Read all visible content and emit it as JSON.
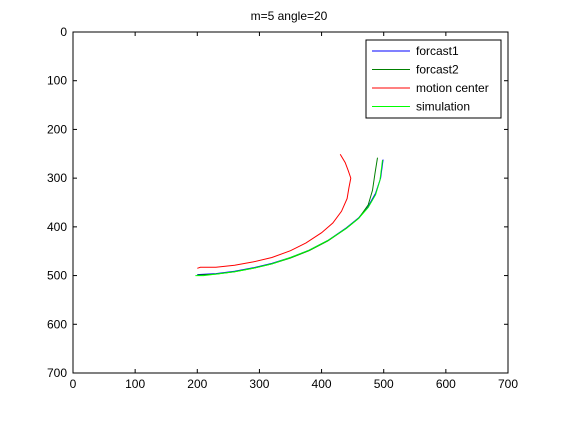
{
  "figure": {
    "background": "#ffffff"
  },
  "chart_data": {
    "type": "line",
    "title": "m=5 angle=20",
    "xlabel": "",
    "ylabel": "",
    "xlim": [
      0,
      700
    ],
    "ylim": [
      0,
      700
    ],
    "y_reversed": true,
    "grid": false,
    "legend_position": "top-right",
    "x_ticks": [
      0,
      100,
      200,
      300,
      400,
      500,
      600,
      700
    ],
    "y_ticks": [
      0,
      100,
      200,
      300,
      400,
      500,
      600,
      700
    ],
    "series": [
      {
        "name": "forcast1",
        "color": "#0000ff",
        "x": [
          200,
          230,
          260,
          290,
          320,
          350,
          380,
          410,
          440,
          460,
          475,
          487,
          495,
          499
        ],
        "y": [
          498,
          496,
          491,
          484,
          475,
          463,
          448,
          428,
          402,
          381,
          358,
          331,
          300,
          262
        ]
      },
      {
        "name": "forcast2",
        "color": "#008000",
        "x": [
          200,
          230,
          260,
          290,
          320,
          350,
          380,
          410,
          440,
          460,
          475,
          482,
          486,
          490
        ],
        "y": [
          499,
          497,
          492,
          485,
          476,
          464,
          449,
          429,
          403,
          382,
          355,
          325,
          290,
          258
        ]
      },
      {
        "name": "motion center",
        "color": "#ff0000",
        "x": [
          200,
          205,
          230,
          260,
          290,
          320,
          350,
          375,
          400,
          418,
          432,
          441,
          444,
          447,
          443,
          438,
          430
        ],
        "y": [
          485,
          483,
          483,
          479,
          472,
          463,
          449,
          433,
          412,
          392,
          368,
          342,
          320,
          300,
          285,
          268,
          251
        ]
      },
      {
        "name": "simulation",
        "color": "#00ff00",
        "x": [
          197,
          210,
          230,
          260,
          290,
          320,
          350,
          380,
          410,
          440,
          460,
          475,
          487,
          494,
          498
        ],
        "y": [
          500,
          500,
          497,
          492,
          485,
          476,
          463,
          448,
          428,
          403,
          382,
          360,
          334,
          304,
          263
        ]
      }
    ]
  }
}
